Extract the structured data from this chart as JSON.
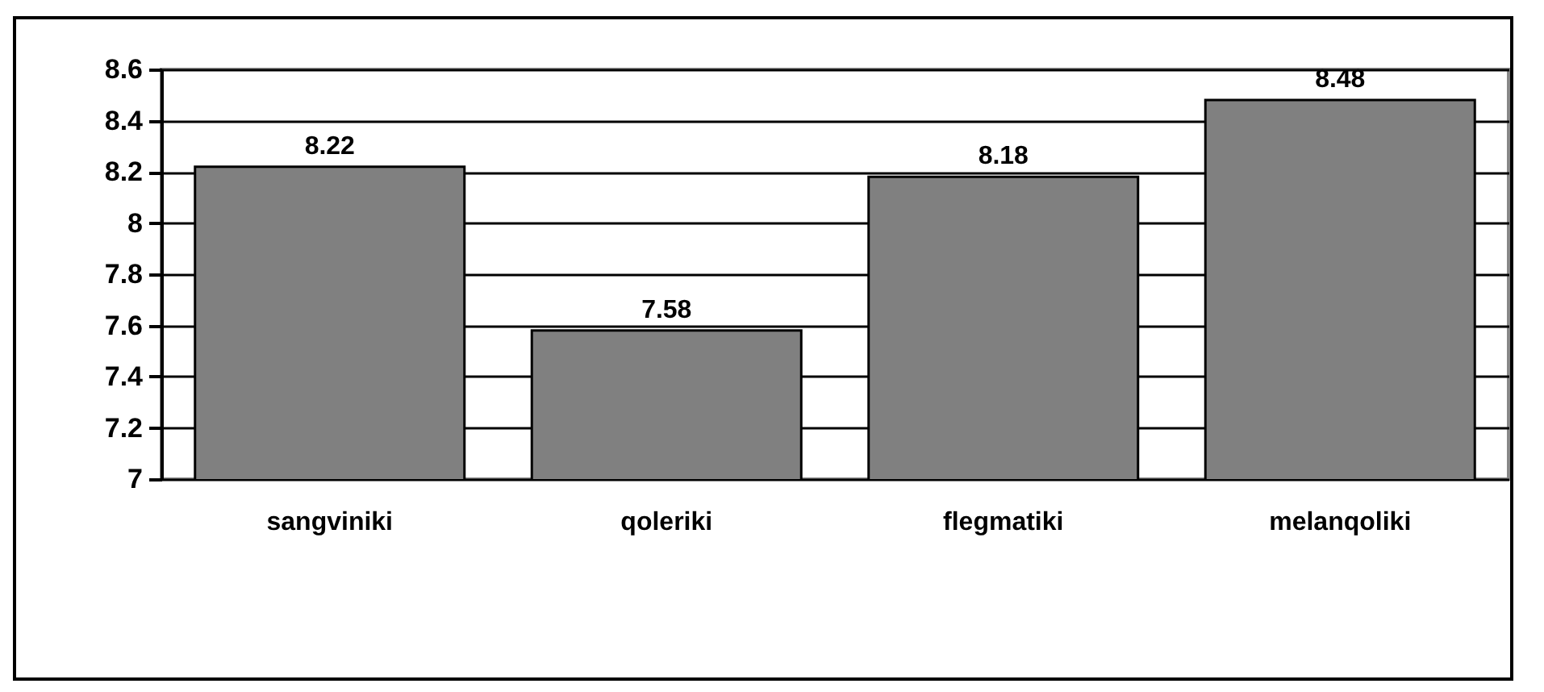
{
  "chart_data": {
    "type": "bar",
    "categories": [
      "sangviniki",
      "qoleriki",
      "flegmatiki",
      "melanqoliki"
    ],
    "values": [
      8.22,
      7.58,
      8.18,
      8.48
    ],
    "color": "#808080",
    "ylim": [
      7,
      8.6
    ],
    "yticks": [
      7,
      7.2,
      7.4,
      7.6,
      7.8,
      8,
      8.2,
      8.4,
      8.6
    ],
    "grid": "y",
    "data_labels": true
  }
}
